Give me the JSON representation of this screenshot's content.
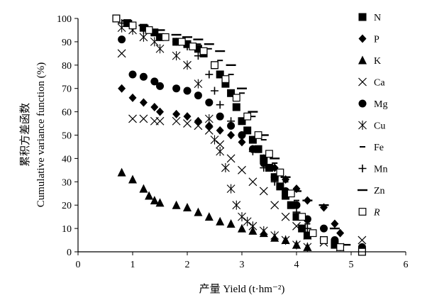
{
  "chart_data": {
    "type": "scatter",
    "xlabel": "产量 Yield (t·hm⁻²)",
    "ylabel_cn": "累积方差函数",
    "ylabel_en": "Cumulative variance function (%)",
    "xlim": [
      0,
      6
    ],
    "ylim": [
      0,
      100
    ],
    "x_ticks": [
      "0",
      "1",
      "2",
      "3",
      "4",
      "5",
      "6"
    ],
    "y_ticks": [
      "0",
      "10",
      "20",
      "30",
      "40",
      "50",
      "60",
      "70",
      "80",
      "90",
      "100"
    ],
    "grid": false,
    "legend_position": "right",
    "series": [
      {
        "name": "N",
        "marker": "square",
        "points": [
          [
            0.7,
            100
          ],
          [
            0.9,
            98
          ],
          [
            1.2,
            96
          ],
          [
            1.4,
            94
          ],
          [
            1.5,
            92
          ],
          [
            1.8,
            90
          ],
          [
            2.0,
            89
          ],
          [
            2.2,
            87
          ],
          [
            2.3,
            85
          ],
          [
            2.5,
            80
          ],
          [
            2.6,
            76
          ],
          [
            2.7,
            72
          ],
          [
            2.8,
            68
          ],
          [
            2.9,
            62
          ],
          [
            3.0,
            56
          ],
          [
            3.1,
            52
          ],
          [
            3.2,
            48
          ],
          [
            3.3,
            44
          ],
          [
            3.4,
            40
          ],
          [
            3.5,
            36
          ],
          [
            3.6,
            32
          ],
          [
            3.7,
            28
          ],
          [
            3.8,
            24
          ],
          [
            3.9,
            20
          ],
          [
            4.0,
            15
          ],
          [
            4.1,
            10
          ],
          [
            4.2,
            7
          ],
          [
            4.5,
            5
          ],
          [
            4.7,
            3
          ],
          [
            5.2,
            0
          ]
        ]
      },
      {
        "name": "P",
        "marker": "diamond",
        "points": [
          [
            0.8,
            70
          ],
          [
            1.0,
            66
          ],
          [
            1.2,
            64
          ],
          [
            1.4,
            62
          ],
          [
            1.5,
            60
          ],
          [
            1.8,
            59
          ],
          [
            2.0,
            58
          ],
          [
            2.2,
            56
          ],
          [
            2.4,
            54
          ],
          [
            2.6,
            52
          ],
          [
            2.8,
            50
          ],
          [
            3.0,
            47
          ],
          [
            3.2,
            44
          ],
          [
            3.4,
            40
          ],
          [
            3.6,
            36
          ],
          [
            3.8,
            31
          ],
          [
            4.0,
            27
          ],
          [
            4.2,
            22
          ],
          [
            4.5,
            19
          ],
          [
            4.7,
            12
          ],
          [
            4.8,
            8
          ]
        ]
      },
      {
        "name": "K",
        "marker": "triangle",
        "points": [
          [
            0.8,
            34
          ],
          [
            1.0,
            31
          ],
          [
            1.2,
            27
          ],
          [
            1.3,
            24
          ],
          [
            1.4,
            22
          ],
          [
            1.5,
            21
          ],
          [
            1.8,
            20
          ],
          [
            2.0,
            19
          ],
          [
            2.2,
            17
          ],
          [
            2.4,
            15
          ],
          [
            2.6,
            13
          ],
          [
            2.8,
            12
          ],
          [
            3.0,
            10
          ],
          [
            3.2,
            9
          ],
          [
            3.4,
            8
          ],
          [
            3.6,
            6
          ],
          [
            3.8,
            5
          ],
          [
            4.0,
            3
          ],
          [
            4.2,
            2
          ]
        ]
      },
      {
        "name": "Ca",
        "marker": "x",
        "points": [
          [
            0.8,
            85
          ],
          [
            1.0,
            57
          ],
          [
            1.2,
            57
          ],
          [
            1.4,
            56
          ],
          [
            1.5,
            56
          ],
          [
            1.8,
            56
          ],
          [
            2.0,
            55
          ],
          [
            2.2,
            54
          ],
          [
            2.4,
            52
          ],
          [
            2.6,
            46
          ],
          [
            2.8,
            40
          ],
          [
            3.0,
            35
          ],
          [
            3.2,
            30
          ],
          [
            3.4,
            26
          ],
          [
            3.6,
            20
          ],
          [
            3.8,
            15
          ],
          [
            4.0,
            11
          ],
          [
            4.2,
            7
          ],
          [
            4.5,
            4
          ],
          [
            4.8,
            2
          ],
          [
            5.2,
            5
          ]
        ]
      },
      {
        "name": "Mg",
        "marker": "circle",
        "points": [
          [
            0.8,
            91
          ],
          [
            1.0,
            76
          ],
          [
            1.2,
            75
          ],
          [
            1.4,
            73
          ],
          [
            1.5,
            71
          ],
          [
            1.8,
            70
          ],
          [
            2.0,
            69
          ],
          [
            2.2,
            67
          ],
          [
            2.4,
            64
          ],
          [
            2.6,
            58
          ],
          [
            2.8,
            54
          ],
          [
            3.0,
            50
          ],
          [
            3.2,
            44
          ],
          [
            3.4,
            38
          ],
          [
            3.6,
            32
          ],
          [
            3.8,
            26
          ],
          [
            4.0,
            20
          ],
          [
            4.2,
            14
          ],
          [
            4.5,
            10
          ],
          [
            4.7,
            5
          ],
          [
            5.2,
            2
          ]
        ]
      },
      {
        "name": "Cu",
        "marker": "asterisk",
        "points": [
          [
            0.8,
            96
          ],
          [
            1.0,
            95
          ],
          [
            1.2,
            92
          ],
          [
            1.4,
            90
          ],
          [
            1.5,
            87
          ],
          [
            1.8,
            84
          ],
          [
            2.0,
            80
          ],
          [
            2.2,
            72
          ],
          [
            2.4,
            57
          ],
          [
            2.5,
            48
          ],
          [
            2.6,
            43
          ],
          [
            2.7,
            36
          ],
          [
            2.8,
            27
          ],
          [
            2.9,
            20
          ],
          [
            3.0,
            15
          ],
          [
            3.1,
            13
          ],
          [
            3.2,
            11
          ],
          [
            3.4,
            9
          ],
          [
            3.6,
            7
          ],
          [
            3.8,
            5
          ],
          [
            4.0,
            3
          ],
          [
            4.2,
            2
          ]
        ]
      },
      {
        "name": "Fe",
        "marker": "dash",
        "points": [
          [
            1.0,
            97
          ],
          [
            1.2,
            96
          ],
          [
            1.5,
            93
          ],
          [
            1.8,
            91
          ],
          [
            2.0,
            90
          ],
          [
            2.2,
            89
          ],
          [
            2.4,
            87
          ],
          [
            2.6,
            82
          ],
          [
            2.8,
            76
          ],
          [
            3.0,
            68
          ],
          [
            3.2,
            58
          ],
          [
            3.4,
            48
          ],
          [
            3.6,
            38
          ],
          [
            3.8,
            30
          ],
          [
            4.0,
            22
          ],
          [
            4.2,
            12
          ],
          [
            4.5,
            6
          ],
          [
            4.8,
            3
          ],
          [
            5.2,
            1
          ]
        ]
      },
      {
        "name": "Mn",
        "marker": "plus",
        "points": [
          [
            0.8,
            98
          ],
          [
            1.0,
            96
          ],
          [
            1.2,
            95
          ],
          [
            1.5,
            92
          ],
          [
            1.8,
            90
          ],
          [
            2.0,
            88
          ],
          [
            2.2,
            84
          ],
          [
            2.4,
            76
          ],
          [
            2.5,
            69
          ],
          [
            2.6,
            63
          ],
          [
            2.8,
            56
          ],
          [
            3.0,
            50
          ],
          [
            3.2,
            43
          ],
          [
            3.4,
            36
          ],
          [
            3.6,
            30
          ],
          [
            3.8,
            24
          ],
          [
            4.0,
            17
          ],
          [
            4.2,
            10
          ],
          [
            4.5,
            5
          ],
          [
            4.8,
            2
          ]
        ]
      },
      {
        "name": "Zn",
        "marker": "longdash",
        "points": [
          [
            0.9,
            99
          ],
          [
            1.2,
            97
          ],
          [
            1.5,
            95
          ],
          [
            1.8,
            93
          ],
          [
            2.0,
            92
          ],
          [
            2.2,
            91
          ],
          [
            2.4,
            89
          ],
          [
            2.6,
            86
          ],
          [
            2.8,
            80
          ],
          [
            3.0,
            70
          ],
          [
            3.2,
            60
          ],
          [
            3.4,
            50
          ],
          [
            3.6,
            40
          ],
          [
            3.8,
            32
          ],
          [
            4.0,
            26
          ],
          [
            4.2,
            22
          ],
          [
            4.5,
            20
          ],
          [
            4.7,
            10
          ],
          [
            4.9,
            3
          ]
        ]
      },
      {
        "name": "R",
        "marker": "opensquare",
        "points": [
          [
            0.7,
            100
          ],
          [
            1.0,
            97
          ],
          [
            1.3,
            95
          ],
          [
            1.6,
            92
          ],
          [
            1.9,
            90
          ],
          [
            2.1,
            88
          ],
          [
            2.3,
            86
          ],
          [
            2.5,
            80
          ],
          [
            2.7,
            74
          ],
          [
            2.9,
            66
          ],
          [
            3.1,
            58
          ],
          [
            3.3,
            50
          ],
          [
            3.5,
            42
          ],
          [
            3.7,
            34
          ],
          [
            3.9,
            25
          ],
          [
            4.1,
            15
          ],
          [
            4.3,
            8
          ],
          [
            4.5,
            5
          ],
          [
            4.8,
            2
          ],
          [
            5.2,
            0
          ]
        ]
      }
    ]
  }
}
